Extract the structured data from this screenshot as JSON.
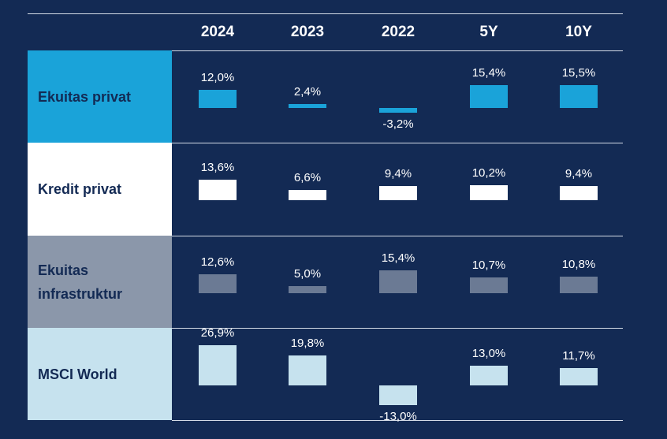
{
  "chart_data": {
    "type": "table",
    "columns": [
      "2024",
      "2023",
      "2022",
      "5Y",
      "10Y"
    ],
    "series": [
      {
        "name": "Ekuitas privat",
        "color": "#1aa3d9",
        "label_color": "#132a54",
        "values": [
          12.0,
          2.4,
          -3.2,
          15.4,
          15.5
        ],
        "value_labels": [
          "12,0%",
          "2,4%",
          "-3,2%",
          "15,4%",
          "15,5%"
        ]
      },
      {
        "name": "Kredit privat",
        "color": "#ffffff",
        "label_color": "#132a54",
        "values": [
          13.6,
          6.6,
          9.4,
          10.2,
          9.4
        ],
        "value_labels": [
          "13,6%",
          "6,6%",
          "9,4%",
          "10,2%",
          "9,4%"
        ]
      },
      {
        "name": "Ekuitas infrastruktur",
        "color": "#8b97aa",
        "label_color": "#132a54",
        "bar_color": "#6b7a94",
        "values": [
          12.6,
          5.0,
          15.4,
          10.7,
          10.8
        ],
        "value_labels": [
          "12,6%",
          "5,0%",
          "15,4%",
          "10,7%",
          "10,8%"
        ]
      },
      {
        "name": "MSCI World",
        "color": "#c6e2ee",
        "label_color": "#132a54",
        "values": [
          26.9,
          19.8,
          -13.0,
          13.0,
          11.7
        ],
        "value_labels": [
          "26,9%",
          "19,8%",
          "-13,0%",
          "13,0%",
          "11,7%"
        ]
      }
    ]
  }
}
